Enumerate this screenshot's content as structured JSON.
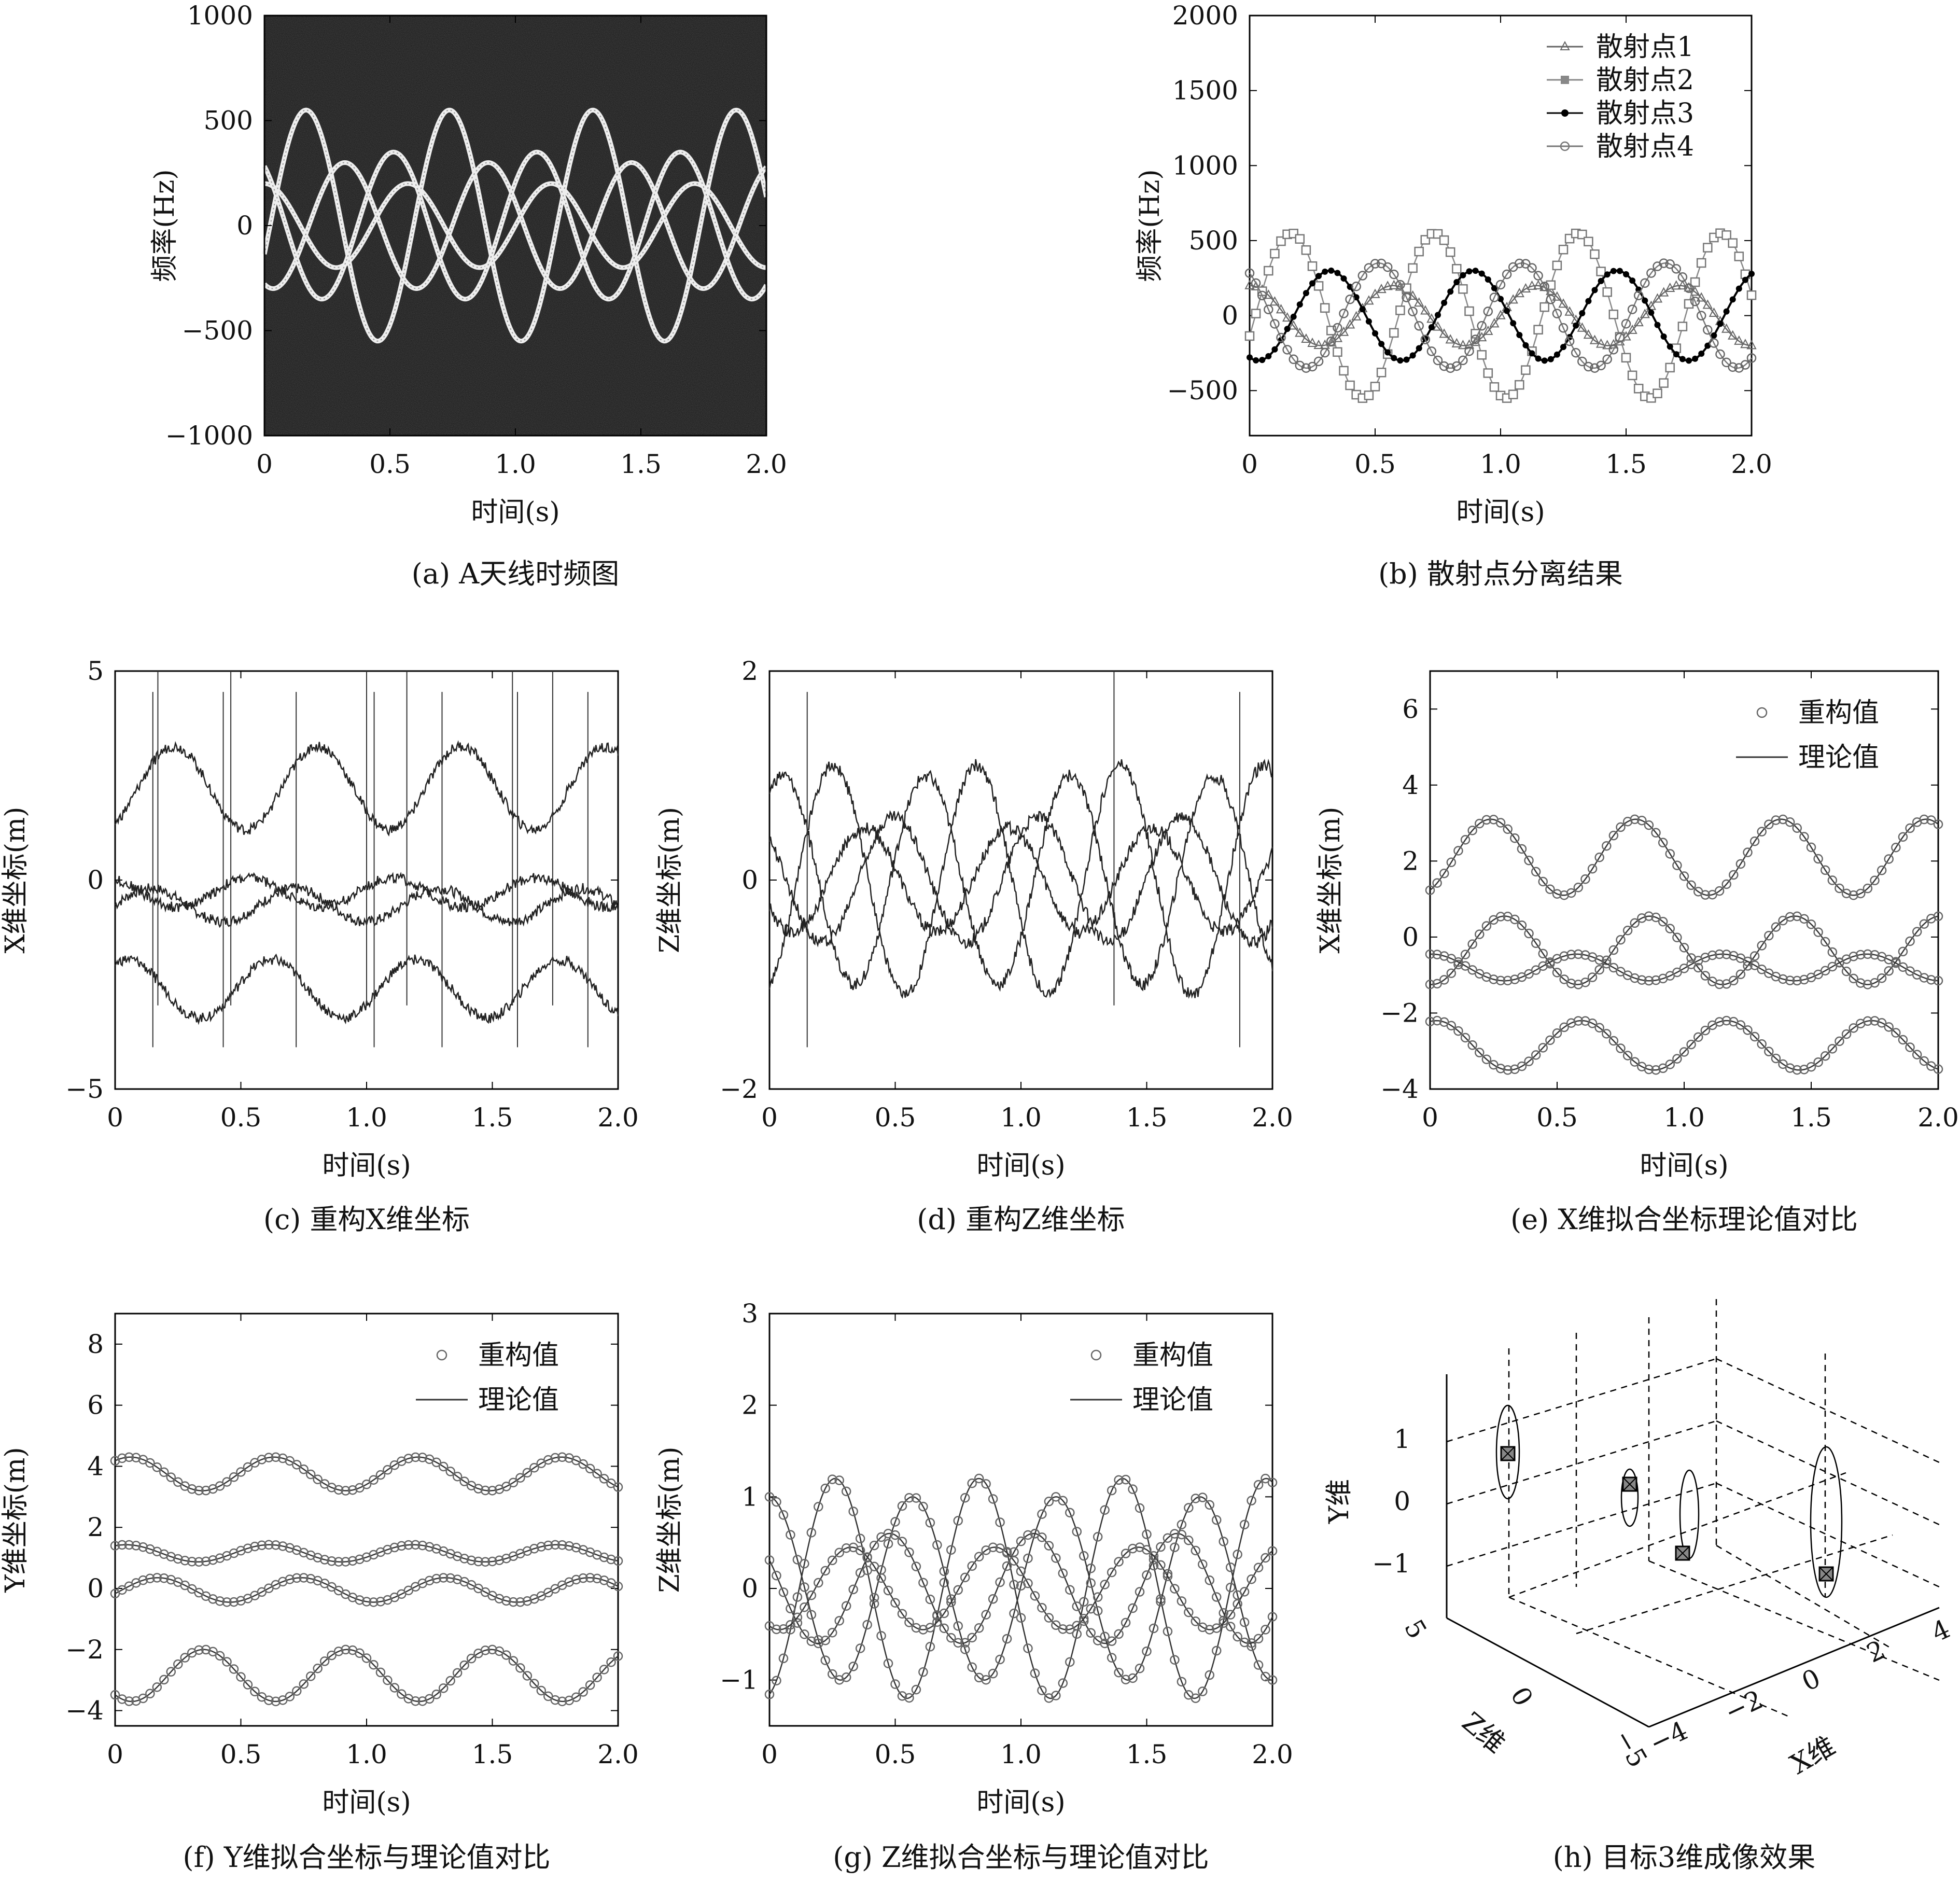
{
  "figure": {
    "panels": [
      {
        "id": "a",
        "caption": "(a) A天线时频图",
        "kind": "spectrogram",
        "xlabel": "时间(s)",
        "ylabel": "频率(Hz)",
        "xticks": [
          "0",
          "0.5",
          "1.0",
          "1.5",
          "2.0"
        ],
        "yticks": [
          "1000",
          "500",
          "0",
          "−500",
          "−1000"
        ]
      },
      {
        "id": "b",
        "caption": "(b) 散射点分离结果",
        "kind": "line",
        "xlabel": "时间(s)",
        "ylabel": "频率(Hz)",
        "xticks": [
          "0",
          "0.5",
          "1.0",
          "1.5",
          "2.0"
        ],
        "yticks": [
          "2000",
          "1500",
          "1000",
          "500",
          "0",
          "−500"
        ],
        "legend": [
          "散射点1",
          "散射点2",
          "散射点3",
          "散射点4"
        ]
      },
      {
        "id": "c",
        "caption": "(c) 重构X维坐标",
        "kind": "line",
        "xlabel": "时间(s)",
        "ylabel": "X维坐标(m)",
        "xticks": [
          "0",
          "0.5",
          "1.0",
          "1.5",
          "2.0"
        ],
        "yticks": [
          "5",
          "0",
          "−5"
        ]
      },
      {
        "id": "d",
        "caption": "(d) 重构Z维坐标",
        "kind": "line",
        "xlabel": "时间(s)",
        "ylabel": "Z维坐标(m)",
        "xticks": [
          "0",
          "0.5",
          "1.0",
          "1.5",
          "2.0"
        ],
        "yticks": [
          "2",
          "0",
          "−2"
        ]
      },
      {
        "id": "e",
        "caption": "(e) X维拟合坐标理论值对比",
        "kind": "line",
        "xlabel": "时间(s)",
        "ylabel": "X维坐标(m)",
        "xticks": [
          "0",
          "0.5",
          "1.0",
          "1.5",
          "2.0"
        ],
        "yticks": [
          "6",
          "4",
          "2",
          "0",
          "−2",
          "−4"
        ],
        "legend": [
          "重构值",
          "理论值"
        ]
      },
      {
        "id": "f",
        "caption": "(f) Y维拟合坐标与理论值对比",
        "kind": "line",
        "xlabel": "时间(s)",
        "ylabel": "Y维坐标(m)",
        "xticks": [
          "0",
          "0.5",
          "1.0",
          "1.5",
          "2.0"
        ],
        "yticks": [
          "8",
          "6",
          "4",
          "2",
          "0",
          "−2",
          "−4"
        ],
        "legend": [
          "重构值",
          "理论值"
        ]
      },
      {
        "id": "g",
        "caption": "(g) Z维拟合坐标与理论值对比",
        "kind": "line",
        "xlabel": "时间(s)",
        "ylabel": "Z维坐标(m)",
        "xticks": [
          "0",
          "0.5",
          "1.0",
          "1.5",
          "2.0"
        ],
        "yticks": [
          "3",
          "2",
          "1",
          "0",
          "−1"
        ],
        "legend": [
          "重构值",
          "理论值"
        ]
      },
      {
        "id": "h",
        "caption": "(h) 目标3维成像效果",
        "kind": "3d-scatter",
        "ylabel": "Y维",
        "zlabel": "Z维",
        "xlabel": "X维",
        "yticks": [
          "1",
          "0",
          "−1"
        ],
        "zticks": [
          "5",
          "0",
          "−5"
        ],
        "xticks": [
          "−4",
          "−2",
          "0",
          "2",
          "4"
        ]
      }
    ]
  },
  "chart_data": [
    {
      "panel": "a",
      "type": "heatmap",
      "xlim": [
        0,
        2
      ],
      "ylim": [
        -1000,
        1000
      ],
      "series": [
        {
          "amp": 200,
          "freq": 1.75,
          "phase": 1.57,
          "offset": 0
        },
        {
          "amp": 550,
          "freq": 1.75,
          "phase": -0.25,
          "offset": 0
        },
        {
          "amp": 300,
          "freq": 1.75,
          "phase": -1.95,
          "offset": 0
        },
        {
          "amp": 350,
          "freq": 1.75,
          "phase": 2.2,
          "offset": 0
        }
      ]
    },
    {
      "panel": "b",
      "type": "line",
      "xlim": [
        0,
        2
      ],
      "ylim": [
        -800,
        2000
      ],
      "legend_position": "top-right",
      "series": [
        {
          "name": "散射点1",
          "amp": 200,
          "freq": 1.75,
          "phase": 1.57,
          "offset": 0
        },
        {
          "name": "散射点2",
          "amp": 550,
          "freq": 1.75,
          "phase": -0.25,
          "offset": 0
        },
        {
          "name": "散射点3",
          "amp": 300,
          "freq": 1.75,
          "phase": -1.95,
          "offset": 0
        },
        {
          "name": "散射点4",
          "amp": 350,
          "freq": 1.75,
          "phase": 2.2,
          "offset": 0
        }
      ]
    },
    {
      "panel": "c",
      "type": "line",
      "xlim": [
        0,
        2
      ],
      "ylim": [
        -5,
        5
      ],
      "series": [
        {
          "amp": 1.0,
          "freq": 1.75,
          "phase": -1.0,
          "offset": 2.2
        },
        {
          "amp": 0.35,
          "freq": 1.75,
          "phase": 2.0,
          "offset": -0.3
        },
        {
          "amp": 0.4,
          "freq": 1.75,
          "phase": 0.0,
          "offset": -0.6
        },
        {
          "amp": 0.7,
          "freq": 1.75,
          "phase": 1.0,
          "offset": -2.6
        }
      ]
    },
    {
      "panel": "d",
      "type": "line",
      "xlim": [
        0,
        2
      ],
      "ylim": [
        -2,
        2
      ],
      "series": [
        {
          "amp": 1.1,
          "freq": 1.75,
          "phase": -1.2,
          "offset": 0
        },
        {
          "amp": 1.0,
          "freq": 1.75,
          "phase": 1.0,
          "offset": 0
        },
        {
          "amp": 0.6,
          "freq": 1.75,
          "phase": 2.4,
          "offset": 0
        },
        {
          "amp": 0.5,
          "freq": 1.75,
          "phase": -2.6,
          "offset": 0
        }
      ]
    },
    {
      "panel": "e",
      "type": "line",
      "xlim": [
        0,
        2
      ],
      "ylim": [
        -4,
        7
      ],
      "legend_position": "top-right",
      "series": [
        {
          "amp": 1.0,
          "freq": 1.75,
          "phase": -1.05,
          "offset": 2.1
        },
        {
          "amp": 0.9,
          "freq": 1.75,
          "phase": -1.65,
          "offset": -0.35
        },
        {
          "amp": 0.35,
          "freq": 1.75,
          "phase": 1.5,
          "offset": -0.8
        },
        {
          "amp": 0.65,
          "freq": 1.75,
          "phase": 1.3,
          "offset": -2.85
        }
      ]
    },
    {
      "panel": "f",
      "type": "line",
      "xlim": [
        0,
        2
      ],
      "ylim": [
        -4.5,
        9
      ],
      "legend_position": "top-right",
      "series": [
        {
          "amp": 0.55,
          "freq": 1.75,
          "phase": 0.9,
          "offset": 3.75
        },
        {
          "amp": 0.28,
          "freq": 1.75,
          "phase": 1.1,
          "offset": 1.15
        },
        {
          "amp": 0.4,
          "freq": 1.75,
          "phase": -0.3,
          "offset": -0.05
        },
        {
          "amp": 0.85,
          "freq": 1.75,
          "phase": -2.3,
          "offset": -2.85
        }
      ]
    },
    {
      "panel": "g",
      "type": "line",
      "xlim": [
        0,
        2
      ],
      "ylim": [
        -1.5,
        3
      ],
      "legend_position": "top-right",
      "series": [
        {
          "amp": 1.2,
          "freq": 1.75,
          "phase": -1.3,
          "offset": 0
        },
        {
          "amp": 1.0,
          "freq": 1.75,
          "phase": 1.6,
          "offset": 0
        },
        {
          "amp": 0.6,
          "freq": 1.75,
          "phase": 2.6,
          "offset": 0
        },
        {
          "amp": 0.45,
          "freq": 1.75,
          "phase": -2.0,
          "offset": 0
        }
      ]
    },
    {
      "panel": "h",
      "type": "scatter",
      "note": "3D scatter of four scatterers with elliptical traces",
      "points": [
        {
          "x": -3.5,
          "y": 0.7,
          "z": 3
        },
        {
          "x": -0.5,
          "y": 0.2,
          "z": 2
        },
        {
          "x": 0.5,
          "y": -0.9,
          "z": 0
        },
        {
          "x": 3.0,
          "y": -1.2,
          "z": -1
        }
      ]
    }
  ]
}
